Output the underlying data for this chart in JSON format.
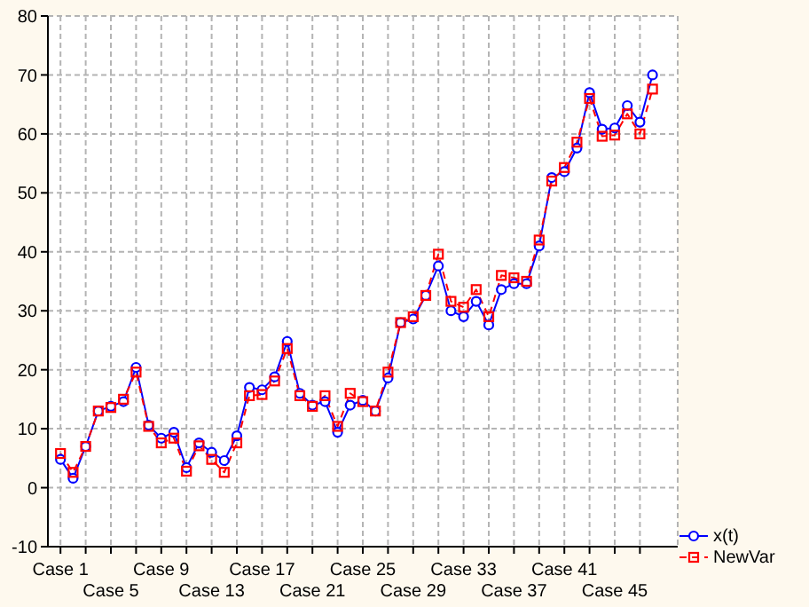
{
  "chart_data": {
    "type": "line",
    "categories": [
      "Case 1",
      null,
      null,
      null,
      "Case 5",
      null,
      null,
      null,
      "Case 9",
      null,
      null,
      null,
      "Case 13",
      null,
      null,
      null,
      "Case 17",
      null,
      null,
      null,
      "Case 21",
      null,
      null,
      null,
      "Case 25",
      null,
      null,
      null,
      "Case 29",
      null,
      null,
      null,
      "Case 33",
      null,
      null,
      null,
      "Case 37",
      null,
      null,
      null,
      "Case 41",
      null,
      null,
      null,
      "Case 45",
      null,
      null,
      null
    ],
    "series": [
      {
        "name": "x(t)",
        "color": "#0000ff",
        "marker": "circle",
        "line_style": "solid",
        "values": [
          4.8,
          1.6,
          7,
          13,
          13.8,
          14.6,
          20.4,
          10.6,
          8.4,
          9.4,
          3.4,
          7.6,
          6,
          4.6,
          8.8,
          17,
          16.6,
          18.8,
          24.8,
          16,
          14,
          14.6,
          9.4,
          14,
          14.8,
          13,
          18.6,
          28,
          28.6,
          32.6,
          37.6,
          30,
          29,
          31.6,
          27.6,
          33.6,
          34.6,
          34.6,
          41,
          52.6,
          53.6,
          57.6,
          67,
          60.8,
          61,
          64.8,
          62,
          70
        ]
      },
      {
        "name": "NewVar",
        "color": "#ff0000",
        "marker": "square",
        "line_style": "dashed",
        "values": [
          5.8,
          2.6,
          7,
          13,
          13.6,
          15,
          19.6,
          10.4,
          7.6,
          8.4,
          2.8,
          7.1,
          4.8,
          2.6,
          7.6,
          15.6,
          15.8,
          18.1,
          23.6,
          15.6,
          13.8,
          15.6,
          10.4,
          16,
          14.6,
          13,
          19.6,
          28,
          29,
          32.6,
          39.6,
          31.6,
          30.6,
          33.6,
          29,
          36,
          35.6,
          35,
          42,
          52,
          54.3,
          58.6,
          66,
          59.6,
          59.8,
          63.4,
          60,
          67.6
        ]
      }
    ],
    "ylim": [
      -10,
      80
    ],
    "yticks": [
      -10,
      0,
      10,
      20,
      30,
      40,
      50,
      60,
      70,
      80
    ],
    "grid": true,
    "legend": "bottom right"
  }
}
